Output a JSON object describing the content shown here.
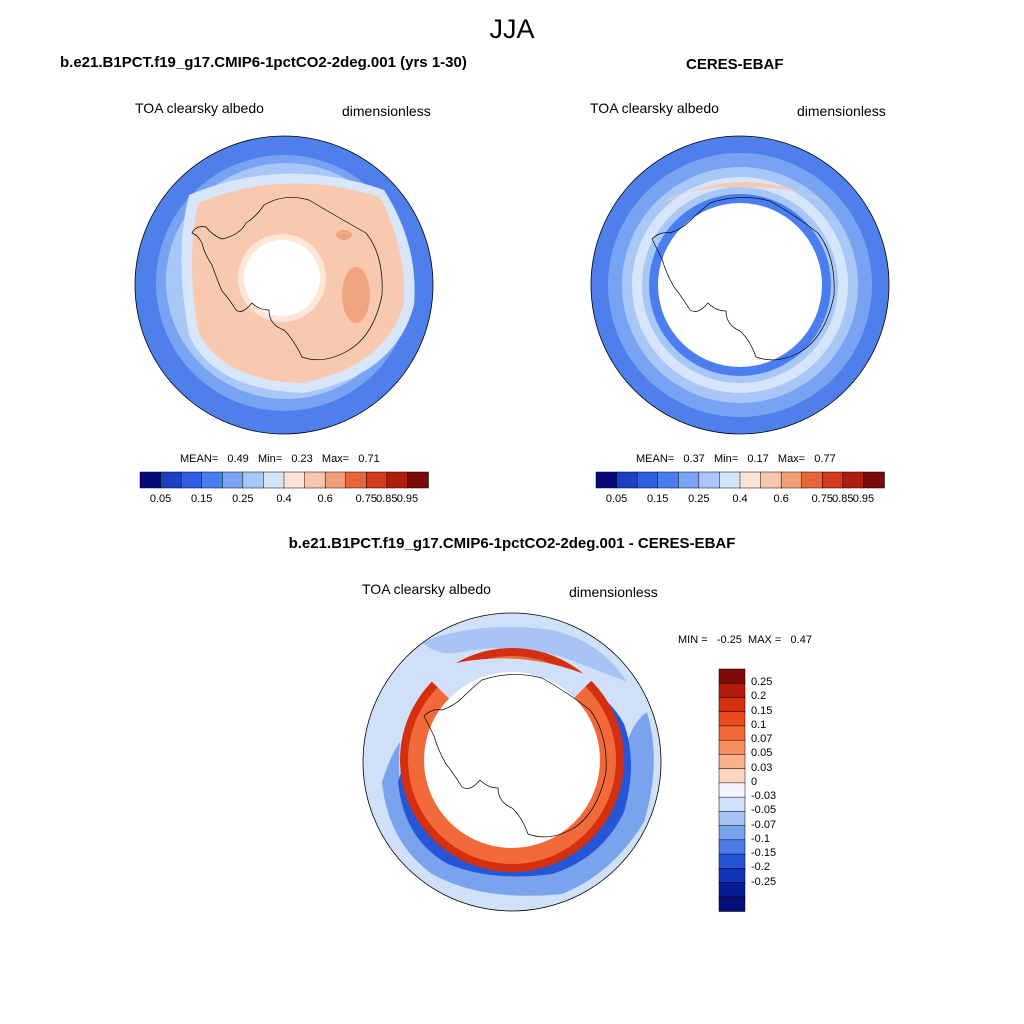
{
  "page": {
    "title": "JJA"
  },
  "panels": {
    "model": {
      "title": "b.e21.B1PCT.f19_g17.CMIP6-1pctCO2-2deg.001 (yrs 1-30)",
      "variable": "TOA clearsky albedo",
      "units": "dimensionless",
      "stats": {
        "mean_label": "MEAN=",
        "mean": "0.49",
        "min_label": "Min=",
        "min": "0.23",
        "max_label": "Max=",
        "max": "0.71"
      }
    },
    "obs": {
      "title": "CERES-EBAF",
      "variable": "TOA clearsky albedo",
      "units": "dimensionless",
      "stats": {
        "mean_label": "MEAN=",
        "mean": "0.37",
        "min_label": "Min=",
        "min": "0.17",
        "max_label": "Max=",
        "max": "0.77"
      }
    },
    "diff": {
      "title": "b.e21.B1PCT.f19_g17.CMIP6-1pctCO2-2deg.001 - CERES-EBAF",
      "variable": "TOA clearsky albedo",
      "units": "dimensionless",
      "stats": {
        "min_label": "MIN =",
        "min": "-0.25",
        "max_label": "MAX =",
        "max": "0.47"
      }
    }
  },
  "colorbars": {
    "abs": {
      "colors": [
        "#0a0a7a",
        "#1e3fc2",
        "#2f5de5",
        "#4a7ef0",
        "#7aa5f4",
        "#a9c7f7",
        "#d4e4fb",
        "#fde6d8",
        "#f8c6aa",
        "#f19d78",
        "#e8663a",
        "#d3391a",
        "#b01d0e",
        "#7d0b07"
      ],
      "ticks": [
        "0.05",
        "0.15",
        "0.25",
        "0.4",
        "0.6",
        "0.75",
        "0.85",
        "0.95"
      ]
    },
    "diff": {
      "colors": [
        "#7d0b07",
        "#b31a0c",
        "#d4300f",
        "#ea4a1e",
        "#f36a3a",
        "#f78e60",
        "#f9b08c",
        "#fcd6c0",
        "#f2f6fb",
        "#cfe0f8",
        "#a7c4f4",
        "#7aa3ee",
        "#4a7be6",
        "#2655d8",
        "#1232b8",
        "#091c96",
        "#050f78"
      ],
      "labels": [
        "0.25",
        "0.2",
        "0.15",
        "0.1",
        "0.07",
        "0.05",
        "0.03",
        "0",
        "-0.03",
        "-0.05",
        "-0.07",
        "-0.1",
        "-0.15",
        "-0.2",
        "-0.25"
      ]
    }
  }
}
